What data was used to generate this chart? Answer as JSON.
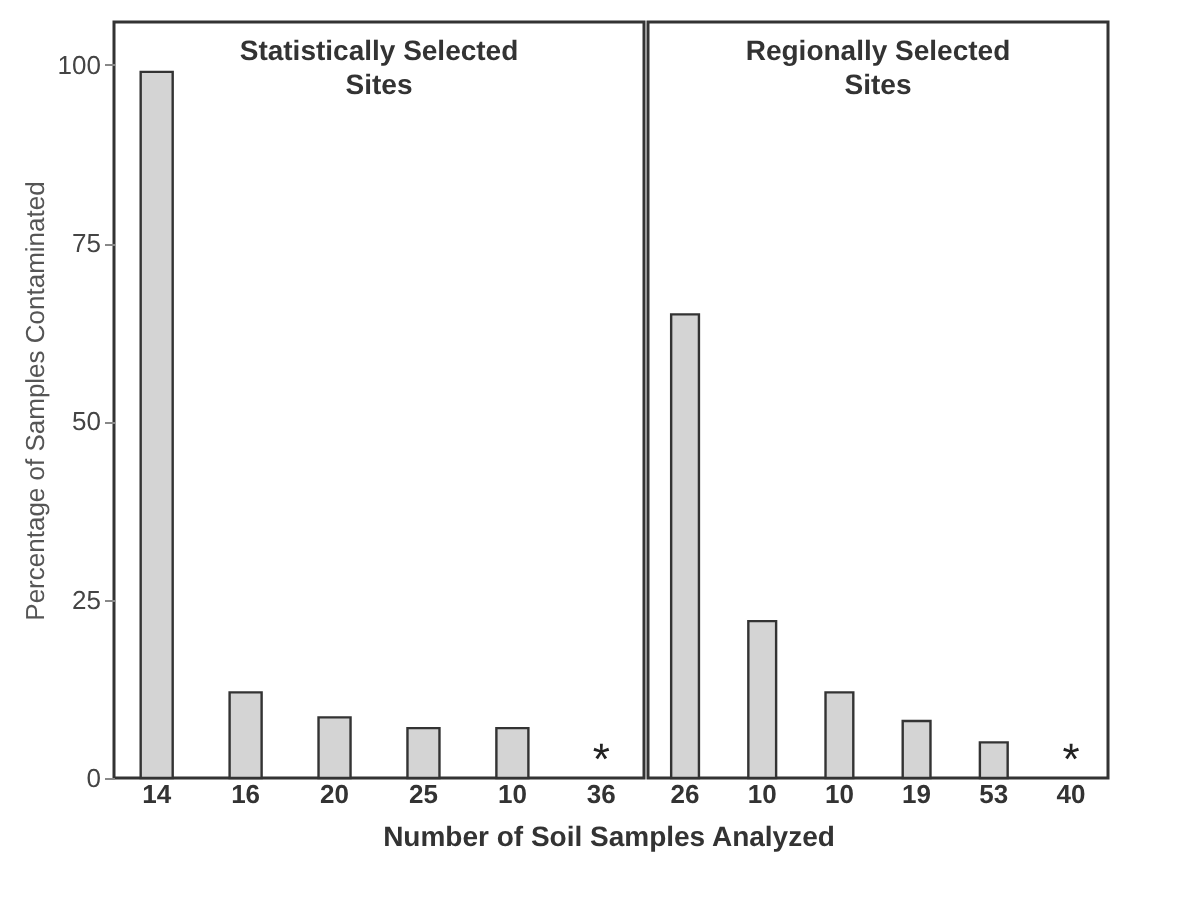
{
  "chart_data": [
    {
      "type": "bar",
      "title": "Statistically Selected Sites",
      "xlabel": "Number of Soil Samples Analyzed",
      "ylabel": "Percentage of Samples Contaminated",
      "categories": [
        "14",
        "16",
        "20",
        "25",
        "10",
        "36"
      ],
      "values": [
        99,
        12,
        8.5,
        7,
        7,
        0
      ],
      "color": "#d4d4d4",
      "ylim": [
        0,
        106
      ],
      "yticks": [
        0,
        25,
        50,
        75,
        100
      ],
      "grid": false,
      "annotations": [
        {
          "text": "*",
          "x": "36",
          "y": 0
        }
      ]
    },
    {
      "type": "bar",
      "title": "Regionally Selected Sites",
      "categories": [
        "26",
        "10",
        "10",
        "19",
        "53",
        "40"
      ],
      "values": [
        65,
        22,
        12,
        8,
        5,
        0
      ],
      "color": "#d4d4d4",
      "ylim": [
        0,
        106
      ],
      "tick_labels": "x",
      "grid": false,
      "annotations": [
        {
          "text": "*",
          "x": "40",
          "y": 0
        }
      ]
    }
  ]
}
